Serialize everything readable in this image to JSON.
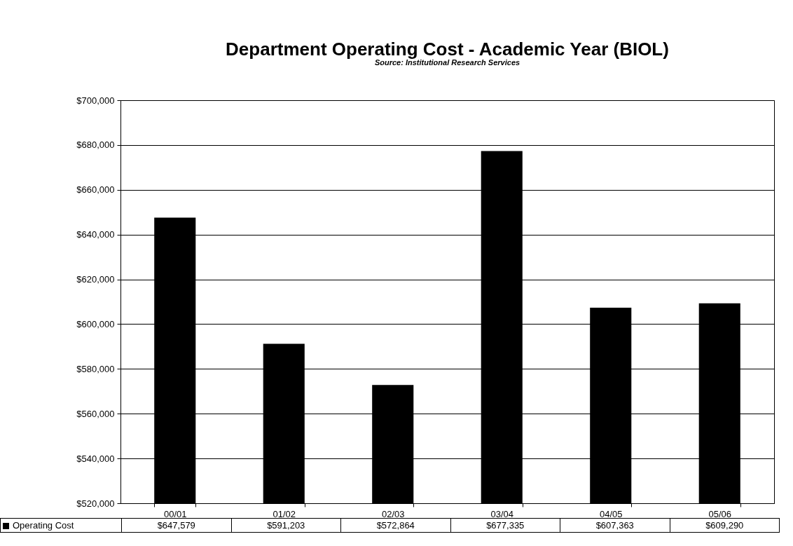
{
  "chart_data": {
    "type": "bar",
    "title": "Department Operating Cost - Academic Year (BIOL)",
    "subtitle": "Source: Institutional Research Services",
    "categories": [
      "00/01",
      "01/02",
      "02/03",
      "03/04",
      "04/05",
      "05/06"
    ],
    "series": [
      {
        "name": "Operating Cost",
        "color": "#000000",
        "values": [
          647579,
          591203,
          572864,
          677335,
          607363,
          609290
        ],
        "value_labels": [
          "$647,579",
          "$591,203",
          "$572,864",
          "$677,335",
          "$607,363",
          "$609,290"
        ]
      }
    ],
    "ylim": [
      520000,
      700000
    ],
    "yticks": [
      {
        "value": 520000,
        "label": "$520,000"
      },
      {
        "value": 540000,
        "label": "$540,000"
      },
      {
        "value": 560000,
        "label": "$560,000"
      },
      {
        "value": 580000,
        "label": "$580,000"
      },
      {
        "value": 600000,
        "label": "$600,000"
      },
      {
        "value": 620000,
        "label": "$620,000"
      },
      {
        "value": 640000,
        "label": "$640,000"
      },
      {
        "value": 660000,
        "label": "$660,000"
      },
      {
        "value": 680000,
        "label": "$680,000"
      },
      {
        "value": 700000,
        "label": "$700,000"
      }
    ],
    "grid": "y",
    "legend": "bottom"
  }
}
